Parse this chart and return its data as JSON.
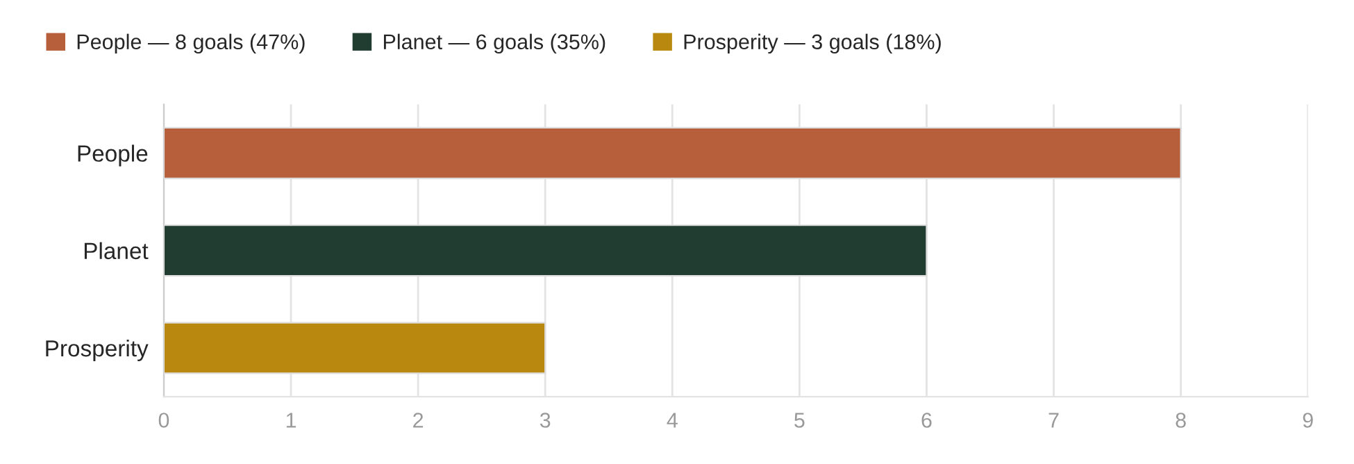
{
  "chart_data": {
    "type": "bar",
    "orientation": "horizontal",
    "stacked": true,
    "categories": [
      "People",
      "Planet",
      "Prosperity"
    ],
    "series": [
      {
        "name": "People — 8 goals (47%)",
        "color": "#b75e3b",
        "values": [
          8,
          null,
          null
        ]
      },
      {
        "name": "Planet — 6 goals (35%)",
        "color": "#213c31",
        "values": [
          null,
          6,
          null
        ]
      },
      {
        "name": "Prosperity — 3 goals (18%)",
        "color": "#b8890e",
        "values": [
          null,
          null,
          3
        ]
      }
    ],
    "xlim": [
      0,
      9
    ],
    "xticks": [
      0,
      1,
      2,
      3,
      4,
      5,
      6,
      7,
      8,
      9
    ],
    "grid": "x",
    "legend": "top left"
  }
}
